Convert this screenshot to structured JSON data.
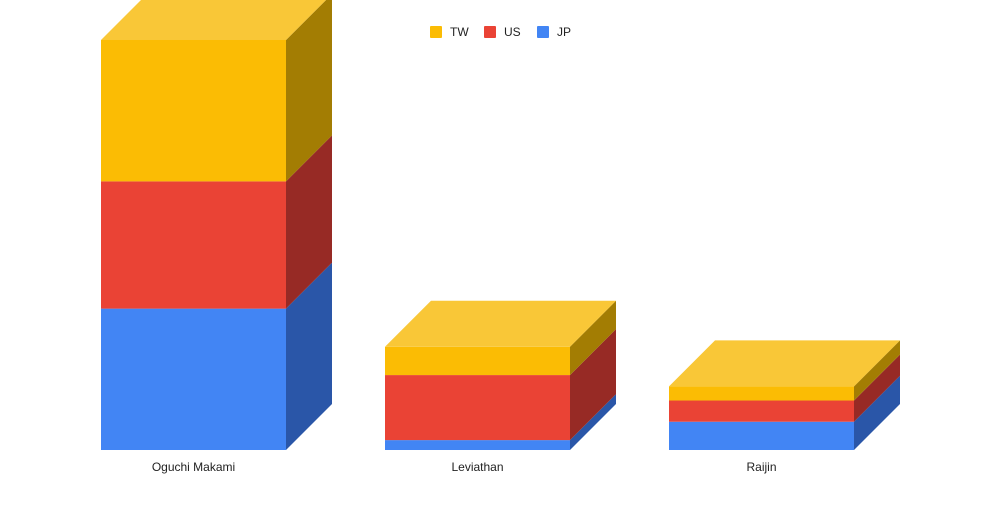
{
  "chart_data": {
    "type": "bar",
    "stacked": true,
    "three_d": true,
    "categories": [
      "Oguchi Makami",
      "Leviathan",
      "Raijin"
    ],
    "series": [
      {
        "name": "JP",
        "values": [
          5,
          0.35,
          1
        ],
        "color": "#4285f4",
        "side_color": "#2a56a8"
      },
      {
        "name": "US",
        "values": [
          4.5,
          2.3,
          0.75
        ],
        "color": "#ea4335",
        "side_color": "#972a25"
      },
      {
        "name": "TW",
        "values": [
          5,
          1,
          0.5
        ],
        "color": "#fbbc04",
        "side_color": "#a37d03",
        "top_color": "#f9c737"
      }
    ],
    "legend": {
      "position": "top-center",
      "order": [
        "TW",
        "US",
        "JP"
      ]
    },
    "ylim": [
      0,
      14.5
    ],
    "grid": false,
    "title": "",
    "xlabel": "",
    "ylabel": ""
  }
}
